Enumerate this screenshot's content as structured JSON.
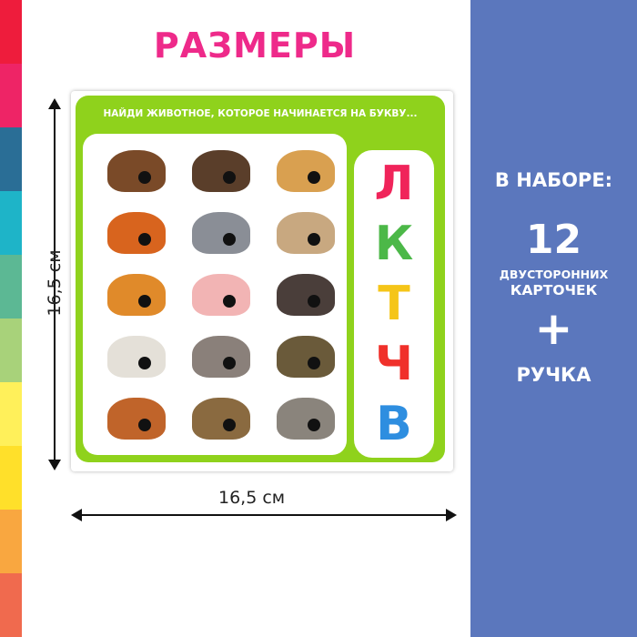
{
  "title": "РАЗМЕРЫ",
  "stripe_colors": [
    "#ee1c3c",
    "#ee2466",
    "#2a6e96",
    "#1eb4c8",
    "#5cb894",
    "#a8d27a",
    "#fff05a",
    "#ffe02a",
    "#f9a740",
    "#f06a4e"
  ],
  "dimensions": {
    "height": "16,5 см",
    "width": "16,5 см"
  },
  "card": {
    "header": "НАЙДИ ЖИВОТНОЕ, КОТОРОЕ НАЧИНАЕТСЯ НА БУКВУ...",
    "animals": [
      {
        "icon": "horse-icon",
        "color": "#7a4a28"
      },
      {
        "icon": "bear-icon",
        "color": "#5a3e2a"
      },
      {
        "icon": "dog-icon",
        "color": "#d9a050"
      },
      {
        "icon": "fox-icon",
        "color": "#d8641e"
      },
      {
        "icon": "cat-icon",
        "color": "#8a8e96"
      },
      {
        "icon": "rabbit-icon",
        "color": "#c8a880"
      },
      {
        "icon": "tiger-icon",
        "color": "#e08a2a"
      },
      {
        "icon": "pig-icon",
        "color": "#f2b4b4"
      },
      {
        "icon": "turkey-icon",
        "color": "#4a3e3a"
      },
      {
        "icon": "goat-icon",
        "color": "#e4e0d8"
      },
      {
        "icon": "rat-icon",
        "color": "#8a807a"
      },
      {
        "icon": "turtle-icon",
        "color": "#6a5a3a"
      },
      {
        "icon": "hen-icon",
        "color": "#c0642a"
      },
      {
        "icon": "duck-icon",
        "color": "#8a6a40"
      },
      {
        "icon": "wolf-icon",
        "color": "#8a847c"
      }
    ],
    "letters": [
      {
        "char": "Л",
        "color": "#f0245a"
      },
      {
        "char": "К",
        "color": "#4cb848"
      },
      {
        "char": "Т",
        "color": "#f5c518"
      },
      {
        "char": "Ч",
        "color": "#f0302a"
      },
      {
        "char": "В",
        "color": "#2e8ee0"
      }
    ]
  },
  "set": {
    "heading": "В НАБОРЕ:",
    "count": "12",
    "line1": "ДВУСТОРОННИХ",
    "line2": "КАРТОЧЕК",
    "plus": "+",
    "extra": "РУЧКА"
  },
  "colors": {
    "blue_panel": "#5b77bd",
    "title": "#ee2a8a",
    "card_green": "#8fd21c"
  }
}
